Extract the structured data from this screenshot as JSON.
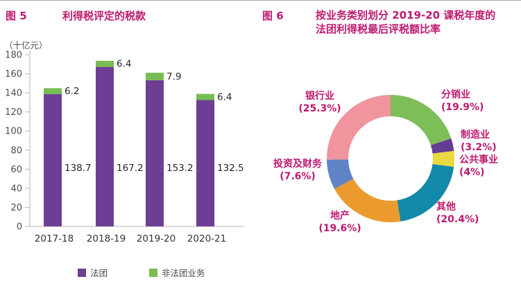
{
  "accent_magenta": "#bd1a70",
  "figure5": {
    "label": "图 5",
    "title": "利得税评定的税款",
    "unit": "（十亿元）"
  },
  "figure6": {
    "label": "图 6",
    "title_line1": "按业务类别划分 2019-20 课税年度的",
    "title_line2": "法团利得税最后评税额比率"
  },
  "chart_data": [
    {
      "type": "bar",
      "stacked": true,
      "title": "利得税评定的税款",
      "unit_label": "（十亿元）",
      "categories": [
        "2017-18",
        "2018-19",
        "2019-20",
        "2020-21"
      ],
      "series": [
        {
          "key": "corporations",
          "name": "法团",
          "color": "#6e3e95",
          "values": [
            138.7,
            167.2,
            153.2,
            132.5
          ]
        },
        {
          "key": "unincorporated",
          "name": "非法团业务",
          "color": "#77bd54",
          "values": [
            6.2,
            6.4,
            7.9,
            6.4
          ]
        }
      ],
      "value_labels_series0": [
        "138.7",
        "167.2",
        "153.2",
        "132.5"
      ],
      "value_labels_series1": [
        "6.2",
        "6.4",
        "7.9",
        "6.4"
      ],
      "ylim": [
        0,
        180
      ],
      "ytick_step": 20,
      "grid": false,
      "legend_position": "bottom"
    },
    {
      "type": "pie",
      "donut": true,
      "title": "按业务类别划分 2019-20 课税年度的法团利得税最后评税额比率",
      "start_angle_deg": 0,
      "direction": "clockwise",
      "segments": [
        {
          "key": "distribution",
          "label": "分销业",
          "pct": 19.9,
          "pct_label": "(19.9%)",
          "color": "#7dbe59"
        },
        {
          "key": "manufacturing",
          "label": "制造业",
          "pct": 3.2,
          "pct_label": "(3.2%)",
          "color": "#653c94"
        },
        {
          "key": "public-utilities",
          "label": "公共事业",
          "pct": 4,
          "pct_label": "(4%)",
          "color": "#e9d83e"
        },
        {
          "key": "others",
          "label": "其他",
          "pct": 20.4,
          "pct_label": "(20.4%)",
          "color": "#1289a9"
        },
        {
          "key": "property",
          "label": "地产",
          "pct": 19.6,
          "pct_label": "(19.6%)",
          "color": "#eb9b2d"
        },
        {
          "key": "investment-finance",
          "label": "投资及财务",
          "pct": 7.6,
          "pct_label": "(7.6%)",
          "color": "#5f83c6"
        },
        {
          "key": "banking",
          "label": "银行业",
          "pct": 25.3,
          "pct_label": "(25.3%)",
          "color": "#f0949e"
        }
      ]
    }
  ]
}
